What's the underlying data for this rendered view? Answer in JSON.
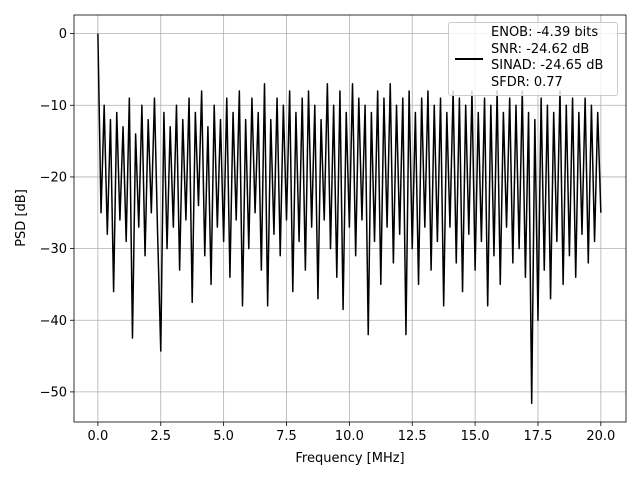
{
  "chart_data": {
    "type": "line",
    "x_label": "Frequency [MHz]",
    "y_label": "PSD [dB]",
    "xlim": [
      -0.95,
      21.0
    ],
    "ylim": [
      -54.2,
      2.6
    ],
    "xticks": [
      {
        "value": 0,
        "label": "0.0"
      },
      2.5,
      {
        "value": 5,
        "label": "5.0"
      },
      7.5,
      {
        "value": 10,
        "label": "10.0"
      },
      12.5,
      {
        "value": 15,
        "label": "15.0"
      },
      17.5,
      {
        "value": 20,
        "label": "20.0"
      }
    ],
    "yticks": [
      {
        "value": -50,
        "label": "−50"
      },
      {
        "value": -40,
        "label": "−40"
      },
      {
        "value": -30,
        "label": "−30"
      },
      {
        "value": -20,
        "label": "−20"
      },
      {
        "value": -10,
        "label": "−10"
      },
      0
    ],
    "grid": true,
    "legend": "upper right",
    "x": [
      0,
      0.125,
      0.25,
      0.375,
      0.5,
      0.625,
      0.75,
      0.875,
      1,
      1.125,
      1.25,
      1.375,
      1.5,
      1.625,
      1.75,
      1.875,
      2,
      2.125,
      2.25,
      2.375,
      2.5,
      2.625,
      2.75,
      2.875,
      3,
      3.125,
      3.25,
      3.375,
      3.5,
      3.625,
      3.75,
      3.875,
      4,
      4.125,
      4.25,
      4.375,
      4.5,
      4.625,
      4.75,
      4.875,
      5,
      5.125,
      5.25,
      5.375,
      5.5,
      5.625,
      5.75,
      5.875,
      6,
      6.125,
      6.25,
      6.375,
      6.5,
      6.625,
      6.75,
      6.875,
      7,
      7.125,
      7.25,
      7.375,
      7.5,
      7.625,
      7.75,
      7.875,
      8,
      8.125,
      8.25,
      8.375,
      8.5,
      8.625,
      8.75,
      8.875,
      9,
      9.125,
      9.25,
      9.375,
      9.5,
      9.625,
      9.75,
      9.875,
      10,
      10.125,
      10.25,
      10.375,
      10.5,
      10.625,
      10.75,
      10.875,
      11,
      11.125,
      11.25,
      11.375,
      11.5,
      11.625,
      11.75,
      11.875,
      12,
      12.125,
      12.25,
      12.375,
      12.5,
      12.625,
      12.75,
      12.875,
      13,
      13.125,
      13.25,
      13.375,
      13.5,
      13.625,
      13.75,
      13.875,
      14,
      14.125,
      14.25,
      14.375,
      14.5,
      14.625,
      14.75,
      14.875,
      15,
      15.125,
      15.25,
      15.375,
      15.5,
      15.625,
      15.75,
      15.875,
      16,
      16.125,
      16.25,
      16.375,
      16.5,
      16.625,
      16.75,
      16.875,
      17,
      17.125,
      17.25,
      17.375,
      17.5,
      17.625,
      17.75,
      17.875,
      18,
      18.125,
      18.25,
      18.375,
      18.5,
      18.625,
      18.75,
      18.875,
      19,
      19.125,
      19.25,
      19.375,
      19.5,
      19.625,
      19.75,
      19.875,
      20
    ],
    "series": [
      {
        "name": "ENOB: -4.39 bits\nSNR: -24.62 dB\nSINAD: -24.65 dB\nSFDR: 0.77",
        "color": "#000000",
        "values": [
          0,
          -25,
          -10,
          -28,
          -12,
          -36,
          -11,
          -26,
          -13,
          -29,
          -9,
          -42.5,
          -14,
          -27,
          -10,
          -31,
          -12,
          -25,
          -9,
          -28,
          -44.3,
          -11,
          -30,
          -13,
          -27,
          -10,
          -33,
          -12,
          -26,
          -9,
          -37.5,
          -11,
          -24,
          -8,
          -31,
          -13,
          -35,
          -10,
          -27,
          -12,
          -29,
          -9,
          -34,
          -11,
          -26,
          -8,
          -38,
          -12,
          -30,
          -9,
          -25,
          -11,
          -33,
          -7,
          -38,
          -12,
          -28,
          -9,
          -31,
          -10,
          -26,
          -8,
          -36,
          -11,
          -29,
          -9,
          -33,
          -8,
          -27,
          -10,
          -37,
          -12,
          -26,
          -7,
          -30,
          -10,
          -34,
          -8,
          -38.5,
          -11,
          -27,
          -7,
          -31,
          -9,
          -26,
          -10,
          -42,
          -11,
          -29,
          -8,
          -35,
          -9,
          -27,
          -7,
          -32,
          -10,
          -28,
          -9,
          -42,
          -8,
          -30,
          -11,
          -35,
          -9,
          -27,
          -8,
          -33,
          -10,
          -29,
          -9,
          -38,
          -11,
          -27,
          -8,
          -32,
          -9,
          -36,
          -10,
          -28,
          -8,
          -33,
          -11,
          -29,
          -9,
          -38,
          -10,
          -31,
          -8,
          -35,
          -11,
          -27,
          -9,
          -32,
          -10,
          -30,
          -8,
          -34,
          -11,
          -51.6,
          -12,
          -40,
          -9,
          -33,
          -10,
          -37,
          -11,
          -29,
          -8,
          -35,
          -10,
          -31,
          -9,
          -34,
          -11,
          -28,
          -9,
          -32,
          -10,
          -29,
          -11,
          -25
        ]
      }
    ]
  }
}
